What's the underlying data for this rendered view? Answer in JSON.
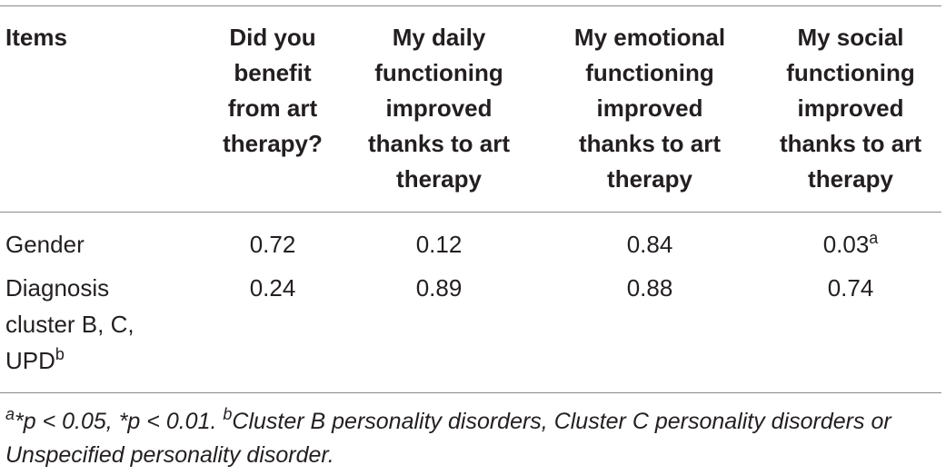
{
  "table": {
    "headers": {
      "items": "Items",
      "col1": [
        "Did you",
        "benefit",
        "from art",
        "therapy?"
      ],
      "col2": [
        "My daily",
        "functioning",
        "improved",
        "thanks to art",
        "therapy"
      ],
      "col3": [
        "My emotional",
        "functioning",
        "improved",
        "thanks to art",
        "therapy"
      ],
      "col4": [
        "My social",
        "functioning",
        "improved",
        "thanks to art",
        "therapy"
      ]
    },
    "rows": [
      {
        "label_lines": [
          "Gender"
        ],
        "cells": [
          "0.72",
          "0.12",
          "0.84",
          "0.03"
        ],
        "c4_sup": "a"
      },
      {
        "label_lines": [
          "Diagnosis",
          "cluster B, C,",
          "UPD"
        ],
        "label_sup": "b",
        "cells": [
          "0.24",
          "0.89",
          "0.88",
          "0.74"
        ]
      }
    ]
  },
  "footnote": {
    "sup_a": "a",
    "text_a": "*p < 0.05, *p < 0.01. ",
    "sup_b": "b",
    "text_b": "Cluster B personality disorders, Cluster C personality disorders or Unspecified personality disorder."
  }
}
